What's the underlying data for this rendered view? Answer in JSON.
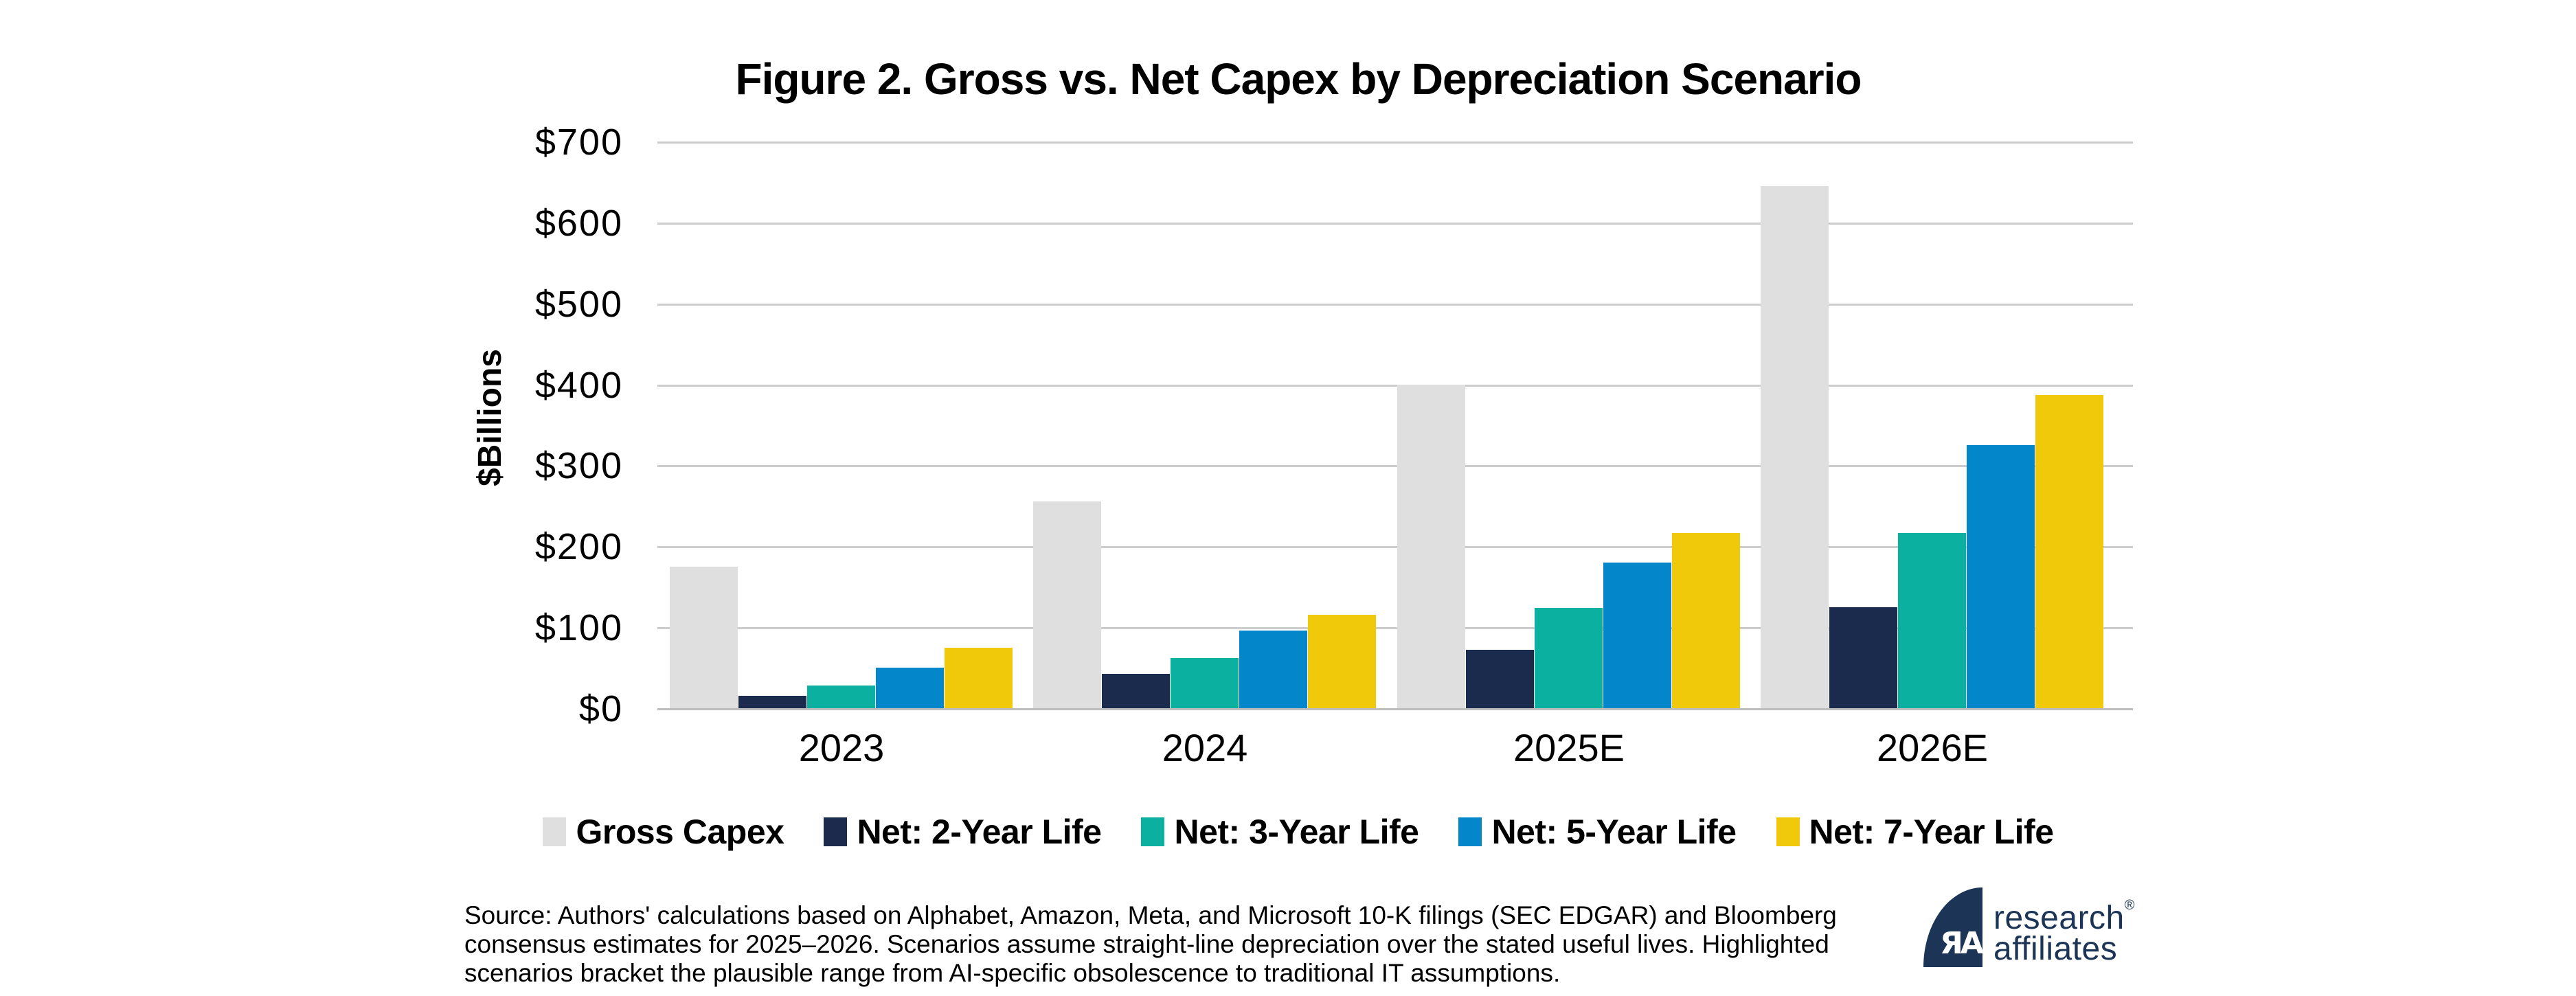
{
  "figure": {
    "title": "Figure 2. Gross vs. Net Capex by Depreciation Scenario"
  },
  "chart_data": {
    "type": "bar",
    "title": "Figure 2. Gross vs. Net Capex by Depreciation Scenario",
    "xlabel": "",
    "ylabel": "$Billions",
    "categories": [
      "2023",
      "2024",
      "2025E",
      "2026E"
    ],
    "series": [
      {
        "name": "Gross Capex",
        "color": "#dfdfdf",
        "values": [
          175,
          255,
          400,
          645
        ]
      },
      {
        "name": "Net: 2-Year Life",
        "color": "#1a2b4d",
        "values": [
          15,
          42,
          72,
          125
        ]
      },
      {
        "name": "Net: 3-Year Life",
        "color": "#0bb0a0",
        "values": [
          28,
          62,
          124,
          216
        ]
      },
      {
        "name": "Net: 5-Year Life",
        "color": "#0486cb",
        "values": [
          50,
          96,
          180,
          325
        ]
      },
      {
        "name": "Net: 7-Year Life",
        "color": "#efc90a",
        "values": [
          75,
          115,
          216,
          387
        ]
      }
    ],
    "ylim": [
      0,
      700
    ],
    "ytick_labels": [
      "$0",
      "$100",
      "$200",
      "$300",
      "$400",
      "$500",
      "$600",
      "$700"
    ],
    "grid": "horizontal",
    "gridline_color": "#cccccc",
    "legend_position": "bottom"
  },
  "source_note": {
    "lines": [
      "Source: Authors' calculations based on Alphabet, Amazon, Meta, and Microsoft 10-K filings (SEC EDGAR) and Bloomberg",
      "consensus estimates for 2025–2026. Scenarios assume straight-line depreciation over the stated useful lives. Highlighted",
      "scenarios bracket the plausible range from AI-specific obsolescence to traditional IT assumptions."
    ]
  },
  "logo": {
    "monogram": "ЯA",
    "brand_line1": "research",
    "registered_mark": "®",
    "brand_line2": "affiliates",
    "brand_color": "#1c3456"
  }
}
